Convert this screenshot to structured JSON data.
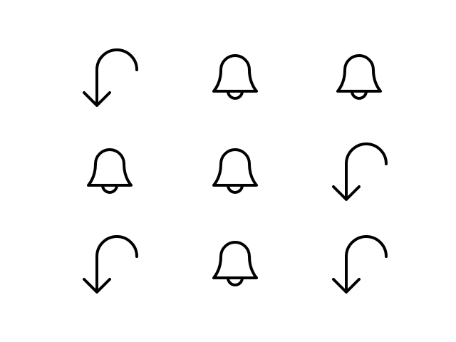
{
  "colors": {
    "background": "#ffffff",
    "icon_stroke": "#000000"
  },
  "grid": [
    [
      "return-arrow-icon",
      "bell-icon",
      "bell-icon"
    ],
    [
      "bell-icon",
      "bell-icon",
      "return-arrow-icon"
    ],
    [
      "return-arrow-icon",
      "bell-icon",
      "return-arrow-icon"
    ]
  ]
}
